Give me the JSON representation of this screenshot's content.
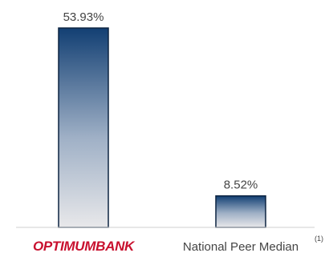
{
  "chart_data": {
    "type": "bar",
    "title": "",
    "xlabel": "",
    "ylabel": "",
    "categories": [
      "OPTIMUMBANK",
      "National Peer Median"
    ],
    "values": [
      53.93,
      8.52
    ],
    "value_labels": [
      "53.93%",
      "8.52%"
    ],
    "category_footnotes": [
      "",
      "(1)"
    ],
    "ylim": [
      0,
      60
    ],
    "grid": false,
    "legend": "none",
    "colors": {
      "bar_top": "#123f73",
      "bar_bottom": "#e8e8ea",
      "bar_border": "#0c2340",
      "logo_red": "#c8102e",
      "text": "#444444",
      "baseline": "#cfcfcf"
    }
  }
}
